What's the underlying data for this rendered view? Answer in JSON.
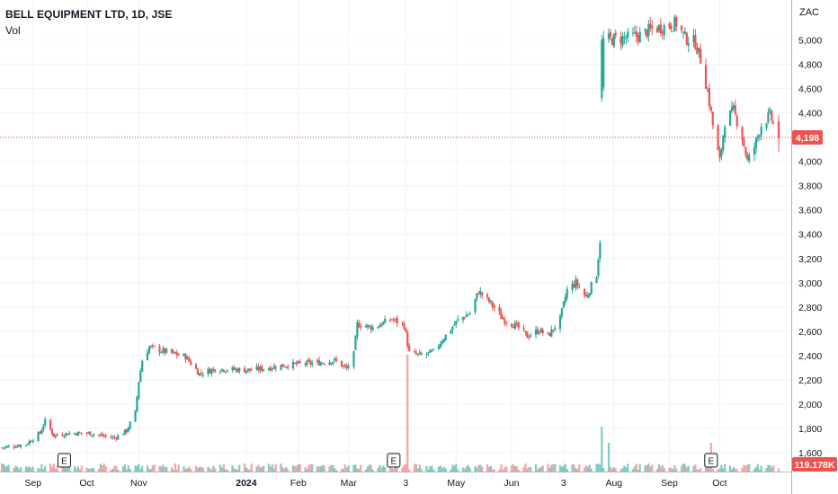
{
  "header": {
    "symbol_line": "BELL EQUIPMENT LTD, 1D, JSE",
    "volume_label": "Vol",
    "currency": "ZAC"
  },
  "price_axis": {
    "ticks": [
      1600,
      1800,
      2000,
      2200,
      2400,
      2600,
      2800,
      3000,
      3200,
      3400,
      3600,
      3800,
      4000,
      4200,
      4400,
      4600,
      4800,
      5000
    ],
    "tick_labels": [
      "1,600",
      "1,800",
      "2,000",
      "2,200",
      "2,400",
      "2,600",
      "2,800",
      "3,000",
      "3,200",
      "3,400",
      "3,600",
      "3,800",
      "4,000",
      "4,200",
      "4,400",
      "4,600",
      "4,800",
      "5,000"
    ]
  },
  "time_axis": {
    "labels": [
      {
        "text": "Sep",
        "bold": false
      },
      {
        "text": "Oct",
        "bold": false
      },
      {
        "text": "Nov",
        "bold": false
      },
      {
        "text": "2024",
        "bold": true
      },
      {
        "text": "Feb",
        "bold": false
      },
      {
        "text": "Mar",
        "bold": false
      },
      {
        "text": "3",
        "bold": false
      },
      {
        "text": "May",
        "bold": false
      },
      {
        "text": "Jun",
        "bold": false
      },
      {
        "text": "3",
        "bold": false
      },
      {
        "text": "Aug",
        "bold": false
      },
      {
        "text": "Sep",
        "bold": false
      },
      {
        "text": "Oct",
        "bold": false
      }
    ]
  },
  "badges": {
    "last_price": "4,198",
    "last_volume": "119.178K",
    "earnings_marker": "E"
  },
  "colors": {
    "up": "#26a69a",
    "down": "#ef5350",
    "up_volume": "#80cbc4",
    "down_volume": "#f5a6a4",
    "grid": "#f0f3fa",
    "price_line": "#ef5350"
  },
  "chart_data": {
    "type": "candlestick",
    "title": "BELL EQUIPMENT LTD, 1D, JSE",
    "y_unit": "ZAC",
    "ylim": [
      1540,
      5160
    ],
    "last_price": 4198,
    "last_volume": "119.178K",
    "grid": true,
    "price_anchors": [
      [
        "2023-08-14",
        1640
      ],
      [
        "2023-08-28",
        1670
      ],
      [
        "2023-09-05",
        1760
      ],
      [
        "2023-09-08",
        1860
      ],
      [
        "2023-09-13",
        1740
      ],
      [
        "2023-09-22",
        1760
      ],
      [
        "2023-10-03",
        1760
      ],
      [
        "2023-10-18",
        1720
      ],
      [
        "2023-10-25",
        1780
      ],
      [
        "2023-10-30",
        1930
      ],
      [
        "2023-11-01",
        2190
      ],
      [
        "2023-11-03",
        2360
      ],
      [
        "2023-11-07",
        2470
      ],
      [
        "2023-11-14",
        2440
      ],
      [
        "2023-11-28",
        2390
      ],
      [
        "2023-12-06",
        2250
      ],
      [
        "2023-12-15",
        2290
      ],
      [
        "2024-01-05",
        2280
      ],
      [
        "2024-01-15",
        2300
      ],
      [
        "2024-01-24",
        2320
      ],
      [
        "2024-02-01",
        2330
      ],
      [
        "2024-02-12",
        2340
      ],
      [
        "2024-02-22",
        2360
      ],
      [
        "2024-02-29",
        2290
      ],
      [
        "2024-03-04",
        2410
      ],
      [
        "2024-03-06",
        2660
      ],
      [
        "2024-03-15",
        2630
      ],
      [
        "2024-03-26",
        2700
      ],
      [
        "2024-04-02",
        2650
      ],
      [
        "2024-04-05",
        2420
      ],
      [
        "2024-04-12",
        2400
      ],
      [
        "2024-04-19",
        2430
      ],
      [
        "2024-04-24",
        2530
      ],
      [
        "2024-05-03",
        2690
      ],
      [
        "2024-05-10",
        2750
      ],
      [
        "2024-05-15",
        2930
      ],
      [
        "2024-05-22",
        2830
      ],
      [
        "2024-05-29",
        2700
      ],
      [
        "2024-06-05",
        2650
      ],
      [
        "2024-06-12",
        2560
      ],
      [
        "2024-06-19",
        2610
      ],
      [
        "2024-06-24",
        2560
      ],
      [
        "2024-07-01",
        2700
      ],
      [
        "2024-07-05",
        2940
      ],
      [
        "2024-07-10",
        3000
      ],
      [
        "2024-07-16",
        2880
      ],
      [
        "2024-07-22",
        3070
      ],
      [
        "2024-07-24",
        3350
      ],
      [
        "2024-07-25",
        4600
      ],
      [
        "2024-07-26",
        5000
      ],
      [
        "2024-08-02",
        5010
      ],
      [
        "2024-08-09",
        5020
      ],
      [
        "2024-08-16",
        5040
      ],
      [
        "2024-08-23",
        5090
      ],
      [
        "2024-08-30",
        5110
      ],
      [
        "2024-09-06",
        5140
      ],
      [
        "2024-09-11",
        5020
      ],
      [
        "2024-09-17",
        4980
      ],
      [
        "2024-09-20",
        4840
      ],
      [
        "2024-09-24",
        4580
      ],
      [
        "2024-09-27",
        4300
      ],
      [
        "2024-10-01",
        4000
      ],
      [
        "2024-10-04",
        4330
      ],
      [
        "2024-10-09",
        4420
      ],
      [
        "2024-10-14",
        4200
      ],
      [
        "2024-10-17",
        4000
      ],
      [
        "2024-10-21",
        4120
      ],
      [
        "2024-10-25",
        4300
      ],
      [
        "2024-10-30",
        4380
      ],
      [
        "2024-11-04",
        4198
      ]
    ],
    "volume_spikes": [
      [
        "2024-04-04",
        "tall"
      ],
      [
        "2024-07-25",
        "medium"
      ],
      [
        "2024-07-29",
        "small"
      ],
      [
        "2024-09-26",
        "small"
      ]
    ],
    "earnings_dates": [
      "2023-09-19",
      "2024-03-27",
      "2024-09-26"
    ]
  }
}
